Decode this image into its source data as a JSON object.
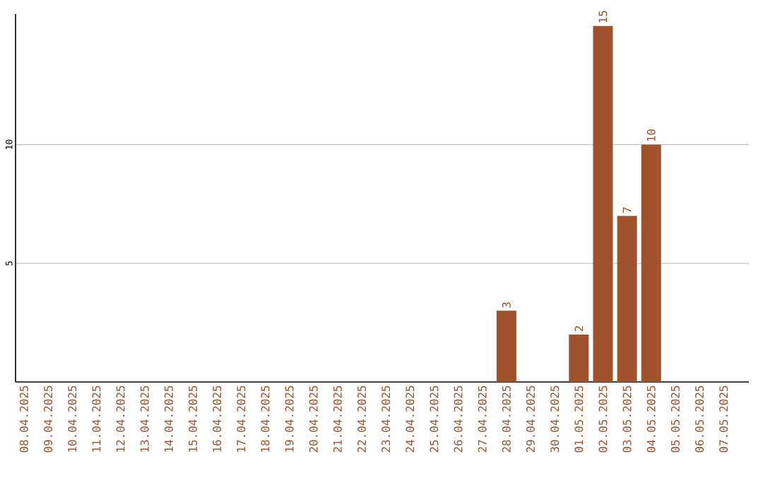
{
  "chart_data": {
    "type": "bar",
    "categories": [
      "08.04.2025",
      "09.04.2025",
      "10.04.2025",
      "11.04.2025",
      "12.04.2025",
      "13.04.2025",
      "14.04.2025",
      "15.04.2025",
      "16.04.2025",
      "17.04.2025",
      "18.04.2025",
      "19.04.2025",
      "20.04.2025",
      "21.04.2025",
      "22.04.2025",
      "23.04.2025",
      "24.04.2025",
      "25.04.2025",
      "26.04.2025",
      "27.04.2025",
      "28.04.2025",
      "29.04.2025",
      "30.04.2025",
      "01.05.2025",
      "02.05.2025",
      "03.05.2025",
      "04.05.2025",
      "05.05.2025",
      "06.05.2025",
      "07.05.2025"
    ],
    "values": [
      0,
      0,
      0,
      0,
      0,
      0,
      0,
      0,
      0,
      0,
      0,
      0,
      0,
      0,
      0,
      0,
      0,
      0,
      0,
      0,
      3,
      0,
      0,
      2,
      15,
      7,
      10,
      0,
      0,
      0
    ],
    "value_labels": [
      null,
      null,
      null,
      null,
      null,
      null,
      null,
      null,
      null,
      null,
      null,
      null,
      null,
      null,
      null,
      null,
      null,
      null,
      null,
      null,
      "3",
      null,
      null,
      "2",
      "15",
      "7",
      "10",
      null,
      null,
      null
    ],
    "color": "#a0522d",
    "ylim": [
      0,
      15.5
    ],
    "yticks": [
      5,
      10
    ],
    "grid": "y"
  }
}
